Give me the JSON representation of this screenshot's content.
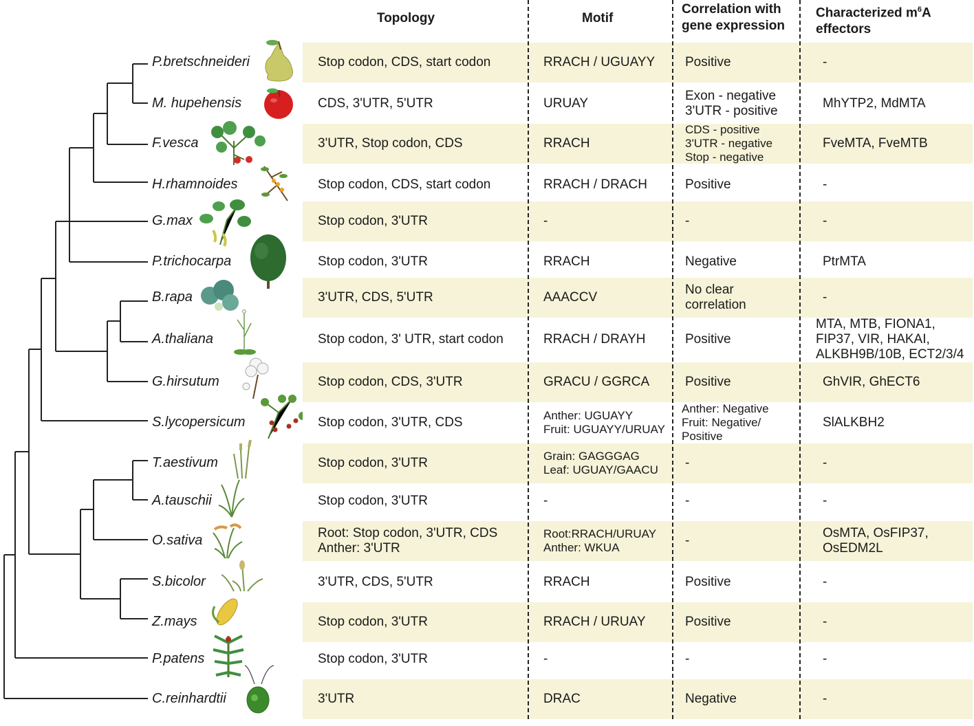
{
  "headers": {
    "topology": "Topology",
    "motif": "Motif",
    "correlation_line1": "Correlation with",
    "correlation_line2": "gene expression",
    "effectors_prefix": "Characterized m",
    "effectors_sup": "6",
    "effectors_suffix": "A",
    "effectors_line2": "effectors"
  },
  "colors": {
    "band": "#f6f3d8",
    "line": "#222222"
  },
  "rows": [
    {
      "species": "P.bretschneideri",
      "icon": "pear-icon",
      "topology": [
        "Stop codon, CDS, start codon"
      ],
      "motif": [
        "RRACH / UGUAYY"
      ],
      "correlation": [
        "Positive"
      ],
      "effectors": [
        "-"
      ]
    },
    {
      "species": "M. hupehensis",
      "icon": "apple-icon",
      "topology": [
        "CDS, 3'UTR, 5'UTR"
      ],
      "motif": [
        "URUAY"
      ],
      "correlation": [
        "Exon - negative",
        "3'UTR - positive"
      ],
      "effectors": [
        "MhYTP2, MdMTA"
      ]
    },
    {
      "species": "F.vesca",
      "icon": "strawberry-plant-icon",
      "topology": [
        "3'UTR, Stop codon, CDS"
      ],
      "motif": [
        "RRACH"
      ],
      "correlation": [
        "CDS - positive",
        "3'UTR - negative",
        "Stop - negative"
      ],
      "effectors": [
        "FveMTA, FveMTB"
      ]
    },
    {
      "species": "H.rhamnoides",
      "icon": "sea-buckthorn-icon",
      "topology": [
        "Stop codon, CDS, start codon"
      ],
      "motif": [
        "RRACH / DRACH"
      ],
      "correlation": [
        "Positive"
      ],
      "effectors": [
        "-"
      ]
    },
    {
      "species": "G.max",
      "icon": "soybean-plant-icon",
      "topology": [
        "Stop codon, 3'UTR"
      ],
      "motif": [
        "-"
      ],
      "correlation": [
        "-"
      ],
      "effectors": [
        "-"
      ]
    },
    {
      "species": "P.trichocarpa",
      "icon": "poplar-tree-icon",
      "topology": [
        "Stop codon, 3'UTR"
      ],
      "motif": [
        "RRACH"
      ],
      "correlation": [
        "Negative"
      ],
      "effectors": [
        "PtrMTA"
      ]
    },
    {
      "species": "B.rapa",
      "icon": "cabbage-icon",
      "topology": [
        "3'UTR, CDS, 5'UTR"
      ],
      "motif": [
        "AAACCV"
      ],
      "correlation": [
        "No clear",
        "correlation"
      ],
      "effectors": [
        "-"
      ]
    },
    {
      "species": "A.thaliana",
      "icon": "arabidopsis-icon",
      "topology": [
        "Stop codon, 3' UTR, start codon"
      ],
      "motif": [
        "RRACH / DRAYH"
      ],
      "correlation": [
        "Positive"
      ],
      "effectors": [
        "MTA, MTB, FIONA1,",
        "FIP37, VIR, HAKAI,",
        "ALKBH9B/10B, ECT2/3/4"
      ]
    },
    {
      "species": "G.hirsutum",
      "icon": "cotton-icon",
      "topology": [
        "Stop codon, CDS, 3'UTR"
      ],
      "motif": [
        "GRACU / GGRCA"
      ],
      "correlation": [
        "Positive"
      ],
      "effectors": [
        "GhVIR, GhECT6"
      ]
    },
    {
      "species": "S.lycopersicum",
      "icon": "tomato-plant-icon",
      "topology": [
        "Stop codon, 3'UTR, CDS"
      ],
      "motif": [
        "Anther: UGUAYY",
        "Fruit: UGUAYY/URUAY"
      ],
      "correlation": [
        "Anther: Negative",
        "Fruit: Negative/",
        "Positive"
      ],
      "effectors": [
        "SlALKBH2"
      ]
    },
    {
      "species": "T.aestivum",
      "icon": "wheat-icon",
      "topology": [
        "Stop codon, 3'UTR"
      ],
      "motif": [
        "Grain: GAGGGAG",
        "Leaf: UGUAY/GAACU"
      ],
      "correlation": [
        "-"
      ],
      "effectors": [
        "-"
      ]
    },
    {
      "species": "A.tauschii",
      "icon": "grass-icon",
      "topology": [
        "Stop codon, 3'UTR"
      ],
      "motif": [
        "-"
      ],
      "correlation": [
        "-"
      ],
      "effectors": [
        "-"
      ]
    },
    {
      "species": "O.sativa",
      "icon": "rice-icon",
      "topology": [
        "Root: Stop codon, 3'UTR, CDS",
        "Anther: 3'UTR"
      ],
      "motif": [
        "Root:RRACH/URUAY",
        "Anther: WKUA"
      ],
      "correlation": [
        "-"
      ],
      "effectors": [
        "OsMTA, OsFIP37,",
        "OsEDM2L"
      ]
    },
    {
      "species": "S.bicolor",
      "icon": "sorghum-icon",
      "topology": [
        "3'UTR, CDS, 5'UTR"
      ],
      "motif": [
        "RRACH"
      ],
      "correlation": [
        "Positive"
      ],
      "effectors": [
        "-"
      ]
    },
    {
      "species": "Z.mays",
      "icon": "maize-icon",
      "topology": [
        "Stop codon, 3'UTR"
      ],
      "motif": [
        "RRACH / URUAY"
      ],
      "correlation": [
        "Positive"
      ],
      "effectors": [
        "-"
      ]
    },
    {
      "species": "P.patens",
      "icon": "moss-icon",
      "topology": [
        "Stop codon, 3'UTR"
      ],
      "motif": [
        "-"
      ],
      "correlation": [
        "-"
      ],
      "effectors": [
        "-"
      ]
    },
    {
      "species": "C.reinhardtii",
      "icon": "chlamydomonas-icon",
      "topology": [
        "3'UTR"
      ],
      "motif": [
        "DRAC"
      ],
      "correlation": [
        "Negative"
      ],
      "effectors": [
        "-"
      ]
    }
  ]
}
